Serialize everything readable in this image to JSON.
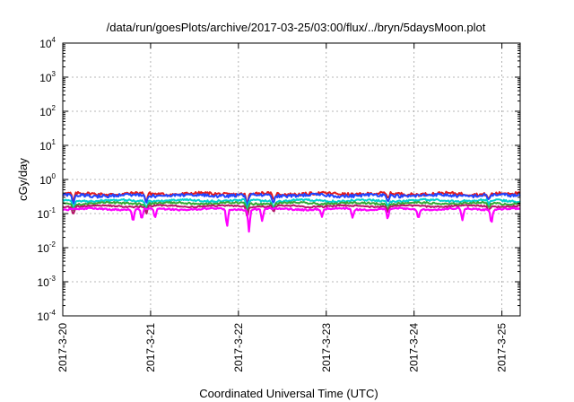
{
  "chart_data": {
    "type": "line",
    "title": "/data/run/goesPlots/archive/2017-03-25/03:00/flux/../bryn/5daysMoon.plot",
    "xlabel": "Coordinated Universal Time (UTC)",
    "ylabel": "cGy/day",
    "yscale": "log",
    "ylim": [
      0.0001,
      10000
    ],
    "xlim": [
      "2017-03-20",
      "2017-03-25 05:00"
    ],
    "grid": true,
    "y_ticks": [
      {
        "base": "10",
        "exp": "4",
        "value": 10000
      },
      {
        "base": "10",
        "exp": "3",
        "value": 1000
      },
      {
        "base": "10",
        "exp": "2",
        "value": 100
      },
      {
        "base": "10",
        "exp": "1",
        "value": 10
      },
      {
        "base": "10",
        "exp": "0",
        "value": 1
      },
      {
        "base": "10",
        "exp": "-1",
        "value": 0.1
      },
      {
        "base": "10",
        "exp": "-2",
        "value": 0.01
      },
      {
        "base": "10",
        "exp": "-3",
        "value": 0.001
      },
      {
        "base": "10",
        "exp": "-4",
        "value": 0.0001
      }
    ],
    "x_ticks": [
      {
        "label": "2017-3-20",
        "day": 0
      },
      {
        "label": "2017-3-21",
        "day": 1
      },
      {
        "label": "2017-3-22",
        "day": 2
      },
      {
        "label": "2017-3-23",
        "day": 3
      },
      {
        "label": "2017-3-24",
        "day": 4
      },
      {
        "label": "2017-3-25",
        "day": 5
      }
    ],
    "series": [
      {
        "color": "#e31a1c",
        "base": 0.38,
        "noise": 0.1,
        "dips": [
          [
            0.12,
            0.55
          ],
          [
            0.95,
            0.55
          ],
          [
            2.1,
            0.45
          ],
          [
            2.4,
            0.6
          ],
          [
            3.7,
            0.7
          ],
          [
            4.85,
            0.7
          ]
        ]
      },
      {
        "color": "#1f45ff",
        "base": 0.34,
        "noise": 0.1,
        "dips": [
          [
            0.12,
            0.55
          ],
          [
            0.95,
            0.55
          ],
          [
            2.1,
            0.45
          ],
          [
            2.4,
            0.6
          ],
          [
            3.7,
            0.7
          ],
          [
            4.85,
            0.7
          ]
        ]
      },
      {
        "color": "#00cfcf",
        "base": 0.24,
        "noise": 0.07,
        "dips": [
          [
            0.12,
            0.6
          ],
          [
            0.95,
            0.6
          ],
          [
            2.1,
            0.5
          ],
          [
            2.4,
            0.65
          ],
          [
            3.7,
            0.7
          ],
          [
            4.85,
            0.75
          ]
        ]
      },
      {
        "color": "#33aa33",
        "base": 0.2,
        "noise": 0.06,
        "dips": [
          [
            0.12,
            0.6
          ],
          [
            0.95,
            0.6
          ],
          [
            2.1,
            0.5
          ],
          [
            2.4,
            0.65
          ],
          [
            3.7,
            0.7
          ],
          [
            4.85,
            0.75
          ]
        ]
      },
      {
        "color": "#b5176b",
        "base": 0.165,
        "noise": 0.05,
        "dips": [
          [
            0.12,
            0.6
          ],
          [
            0.95,
            0.6
          ],
          [
            2.1,
            0.5
          ],
          [
            2.4,
            0.65
          ],
          [
            3.7,
            0.7
          ],
          [
            4.85,
            0.75
          ]
        ]
      },
      {
        "color": "#ff00ff",
        "base": 0.135,
        "noise": 0.05,
        "dips": [
          [
            0.8,
            0.45
          ],
          [
            0.9,
            0.5
          ],
          [
            1.05,
            0.55
          ],
          [
            1.87,
            0.3
          ],
          [
            2.12,
            0.22
          ],
          [
            2.27,
            0.45
          ],
          [
            2.95,
            0.6
          ],
          [
            3.3,
            0.55
          ],
          [
            3.7,
            0.5
          ],
          [
            4.05,
            0.55
          ],
          [
            4.55,
            0.45
          ],
          [
            4.88,
            0.4
          ]
        ]
      }
    ]
  }
}
